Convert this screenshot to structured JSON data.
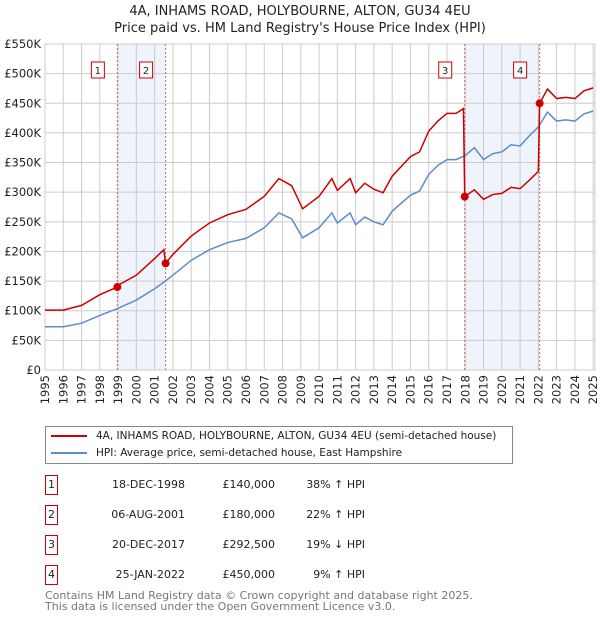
{
  "title": "4A, INHAMS ROAD, HOLYBOURNE, ALTON, GU34 4EU",
  "subtitle": "Price paid vs. HM Land Registry's House Price Index (HPI)",
  "chart_data": {
    "type": "line",
    "title": "4A, INHAMS ROAD, HOLYBOURNE, ALTON, GU34 4EU",
    "subtitle": "Price paid vs. HM Land Registry's House Price Index (HPI)",
    "xlim": [
      1995,
      2025.1
    ],
    "ylim": [
      0,
      550000
    ],
    "yticks": [
      0,
      50000,
      100000,
      150000,
      200000,
      250000,
      300000,
      350000,
      400000,
      450000,
      500000,
      550000
    ],
    "ytick_labels": [
      "£0",
      "£50K",
      "£100K",
      "£150K",
      "£200K",
      "£250K",
      "£300K",
      "£350K",
      "£400K",
      "£450K",
      "£500K",
      "£550K"
    ],
    "xticks": [
      1995,
      1996,
      1997,
      1998,
      1999,
      2000,
      2001,
      2002,
      2003,
      2004,
      2005,
      2006,
      2007,
      2008,
      2009,
      2010,
      2011,
      2012,
      2013,
      2014,
      2015,
      2016,
      2017,
      2018,
      2019,
      2020,
      2021,
      2022,
      2023,
      2024,
      2025
    ],
    "grid": true,
    "series": [
      {
        "name": "4A, INHAMS ROAD, HOLYBOURNE, ALTON, GU34 4EU (semi-detached house)",
        "color": "#cc0000",
        "x": [
          1995,
          1996,
          1997,
          1998,
          1998.96,
          1999,
          2000,
          2001,
          2001.5,
          2001.6,
          2002,
          2003,
          2004,
          2005,
          2006,
          2007,
          2007.8,
          2008.5,
          2009.1,
          2010,
          2010.7,
          2011,
          2011.7,
          2012,
          2012.5,
          2013,
          2013.5,
          2014,
          2015,
          2015.5,
          2016,
          2016.5,
          2017,
          2017.5,
          2017.9,
          2017.97,
          2018.5,
          2019,
          2019.5,
          2020,
          2020.5,
          2021,
          2021.5,
          2022.0,
          2022.07,
          2022.5,
          2023,
          2023.5,
          2024,
          2024.5,
          2025
        ],
        "y": [
          101000,
          101000,
          109000,
          127000,
          140000,
          143000,
          160000,
          188000,
          203000,
          180000,
          195000,
          226000,
          248000,
          262000,
          271000,
          293000,
          323000,
          311000,
          272000,
          293000,
          323000,
          303000,
          323000,
          299000,
          315000,
          305000,
          299000,
          327000,
          360000,
          368000,
          403000,
          420000,
          433000,
          433000,
          441000,
          292500,
          304000,
          288000,
          296000,
          298000,
          308000,
          306000,
          320000,
          335000,
          450000,
          474000,
          458000,
          460000,
          458000,
          471000,
          476000
        ]
      },
      {
        "name": "HPI: Average price, semi-detached house, East Hampshire",
        "color": "#5b8ccc",
        "x": [
          1995,
          1996,
          1997,
          1998,
          1999,
          2000,
          2001,
          2001.5,
          2002,
          2003,
          2004,
          2005,
          2006,
          2007,
          2007.8,
          2008.5,
          2009.1,
          2010,
          2010.7,
          2011,
          2011.7,
          2012,
          2012.5,
          2013,
          2013.5,
          2014,
          2015,
          2015.5,
          2016,
          2016.5,
          2017,
          2017.5,
          2018,
          2018.5,
          2019,
          2019.5,
          2020,
          2020.5,
          2021,
          2021.5,
          2022,
          2022.5,
          2023,
          2023.5,
          2024,
          2024.5,
          2025
        ],
        "y": [
          73000,
          73000,
          79000,
          92000,
          104000,
          118000,
          137000,
          148000,
          160000,
          185000,
          203000,
          215000,
          222000,
          240000,
          265000,
          255000,
          223000,
          240000,
          265000,
          248000,
          265000,
          245000,
          258000,
          250000,
          245000,
          268000,
          295000,
          302000,
          330000,
          345000,
          355000,
          355000,
          362000,
          375000,
          355000,
          365000,
          368000,
          380000,
          378000,
          395000,
          410000,
          435000,
          420000,
          422000,
          420000,
          432000,
          437000
        ]
      }
    ],
    "sales": [
      {
        "label": "1",
        "x": 1998.96,
        "price": 140000
      },
      {
        "label": "2",
        "x": 2001.6,
        "price": 180000
      },
      {
        "label": "3",
        "x": 2017.97,
        "price": 292500
      },
      {
        "label": "4",
        "x": 2022.07,
        "price": 450000
      }
    ],
    "shaded_ranges": [
      [
        1998.96,
        2001.6
      ],
      [
        2017.97,
        2022.07
      ]
    ]
  },
  "legend": [
    {
      "label": "4A, INHAMS ROAD, HOLYBOURNE, ALTON, GU34 4EU (semi-detached house)",
      "color": "#cc0000"
    },
    {
      "label": "HPI: Average price, semi-detached house, East Hampshire",
      "color": "#5b8ccc"
    }
  ],
  "transactions": [
    {
      "num": "1",
      "date": "18-DEC-1998",
      "price": "£140,000",
      "diff": "38% ↑ HPI"
    },
    {
      "num": "2",
      "date": "06-AUG-2001",
      "price": "£180,000",
      "diff": "22% ↑ HPI"
    },
    {
      "num": "3",
      "date": "20-DEC-2017",
      "price": "£292,500",
      "diff": "19% ↓ HPI"
    },
    {
      "num": "4",
      "date": "25-JAN-2022",
      "price": "£450,000",
      "diff": "9% ↑ HPI"
    }
  ],
  "footer": [
    "Contains HM Land Registry data © Crown copyright and database right 2025.",
    "This data is licensed under the Open Government Licence v3.0."
  ]
}
